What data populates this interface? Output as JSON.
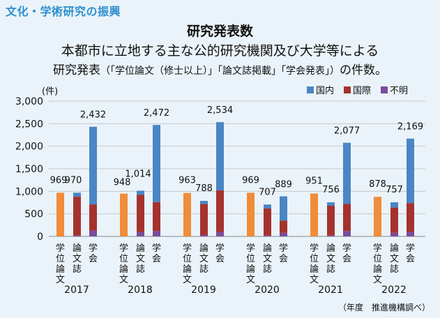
{
  "section_title": "文化・学術研究の振興",
  "chart_title": "研究発表数",
  "description_line1": "本都市に立地する主な公的研究機関及び大学等による",
  "description_line2_a": "研究発表",
  "description_line2_b": "（「学位論文（修士以上）」「論文誌掲載」「学会発表」）",
  "description_line2_c": "の件数。",
  "source_note": "（年度　推進機構調べ）",
  "chart_data": {
    "type": "bar",
    "stacked": true,
    "ylabel": "(件)",
    "ylim": [
      0,
      3000
    ],
    "yticks": [
      "0",
      "500",
      "1,000",
      "1,500",
      "2,000",
      "2,500",
      "3,000"
    ],
    "ytick_values": [
      0,
      500,
      1000,
      1500,
      2000,
      2500,
      3000
    ],
    "groups": [
      "2017",
      "2018",
      "2019",
      "2020",
      "2021",
      "2022"
    ],
    "sub_categories": [
      "学位論文",
      "論文誌",
      "学会"
    ],
    "sub_category_labels": [
      [
        "学",
        "位",
        "論",
        "文"
      ],
      [
        "論",
        "文",
        "誌"
      ],
      [
        "学",
        "会"
      ]
    ],
    "legend": [
      {
        "name": "国内",
        "color": "#4a86c5"
      },
      {
        "name": "国際",
        "color": "#a5322e"
      },
      {
        "name": "不明",
        "color": "#7a4c9e"
      }
    ],
    "thesis_color": "#f08c3a",
    "bars": [
      {
        "group": "2017",
        "category": "学位論文",
        "total_label": "969",
        "total": 969
      },
      {
        "group": "2017",
        "category": "論文誌",
        "total_label": "970",
        "total": 970,
        "domestic": 90,
        "international": 860,
        "unknown": 20
      },
      {
        "group": "2017",
        "category": "学会",
        "total_label": "2,432",
        "total": 2432,
        "domestic": 1722,
        "international": 580,
        "unknown": 130
      },
      {
        "group": "2018",
        "category": "学位論文",
        "total_label": "948",
        "total": 948
      },
      {
        "group": "2018",
        "category": "論文誌",
        "total_label": "1,014",
        "total": 1014,
        "domestic": 94,
        "international": 820,
        "unknown": 100
      },
      {
        "group": "2018",
        "category": "学会",
        "total_label": "2,472",
        "total": 2472,
        "domestic": 1712,
        "international": 640,
        "unknown": 120
      },
      {
        "group": "2019",
        "category": "学位論文",
        "total_label": "963",
        "total": 963
      },
      {
        "group": "2019",
        "category": "論文誌",
        "total_label": "788",
        "total": 788,
        "domestic": 68,
        "international": 690,
        "unknown": 30
      },
      {
        "group": "2019",
        "category": "学会",
        "total_label": "2,534",
        "total": 2534,
        "domestic": 1514,
        "international": 920,
        "unknown": 100
      },
      {
        "group": "2020",
        "category": "学位論文",
        "total_label": "969",
        "total": 969
      },
      {
        "group": "2020",
        "category": "論文誌",
        "total_label": "707",
        "total": 707,
        "domestic": 87,
        "international": 600,
        "unknown": 20
      },
      {
        "group": "2020",
        "category": "学会",
        "total_label": "889",
        "total": 889,
        "domestic": 539,
        "international": 270,
        "unknown": 80
      },
      {
        "group": "2021",
        "category": "学位論文",
        "total_label": "951",
        "total": 951
      },
      {
        "group": "2021",
        "category": "論文誌",
        "total_label": "756",
        "total": 756,
        "domestic": 76,
        "international": 660,
        "unknown": 20
      },
      {
        "group": "2021",
        "category": "学会",
        "total_label": "2,077",
        "total": 2077,
        "domestic": 1357,
        "international": 600,
        "unknown": 120
      },
      {
        "group": "2022",
        "category": "学位論文",
        "total_label": "878",
        "total": 878
      },
      {
        "group": "2022",
        "category": "論文誌",
        "total_label": "757",
        "total": 757,
        "domestic": 117,
        "international": 560,
        "unknown": 80
      },
      {
        "group": "2022",
        "category": "学会",
        "total_label": "2,169",
        "total": 2169,
        "domestic": 1429,
        "international": 640,
        "unknown": 100
      }
    ]
  }
}
